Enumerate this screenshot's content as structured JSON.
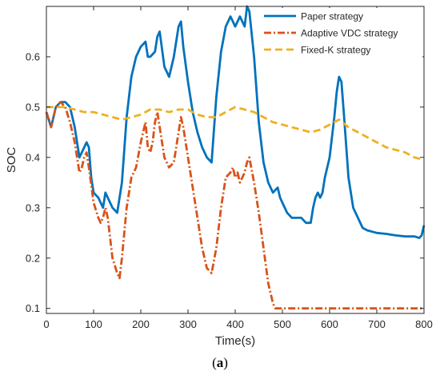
{
  "chart_data": {
    "type": "line",
    "xlabel": "Time(s)",
    "ylabel": "SOC",
    "xlim": [
      0,
      800
    ],
    "ylim": [
      0.09,
      0.7
    ],
    "xticks": [
      0,
      100,
      200,
      300,
      400,
      500,
      600,
      700,
      800
    ],
    "yticks": [
      0.1,
      0.2,
      0.3,
      0.4,
      0.5,
      0.6
    ],
    "grid": false,
    "legend_position": "top-right",
    "series": [
      {
        "name": "Paper strategy",
        "color": "#0072BD",
        "style": "solid",
        "x": [
          0,
          10,
          20,
          30,
          40,
          50,
          60,
          70,
          75,
          85,
          90,
          95,
          100,
          110,
          120,
          125,
          130,
          140,
          150,
          160,
          170,
          180,
          190,
          200,
          210,
          215,
          220,
          230,
          235,
          240,
          250,
          260,
          270,
          280,
          285,
          290,
          300,
          310,
          320,
          330,
          340,
          350,
          360,
          370,
          380,
          390,
          395,
          400,
          410,
          420,
          425,
          430,
          440,
          450,
          460,
          470,
          480,
          490,
          495,
          500,
          510,
          520,
          530,
          540,
          550,
          560,
          565,
          570,
          575,
          580,
          585,
          590,
          600,
          610,
          615,
          620,
          625,
          630,
          640,
          650,
          660,
          670,
          680,
          700,
          720,
          740,
          760,
          780,
          790,
          795,
          800
        ],
        "y": [
          0.49,
          0.46,
          0.5,
          0.51,
          0.51,
          0.5,
          0.46,
          0.4,
          0.41,
          0.43,
          0.42,
          0.36,
          0.33,
          0.32,
          0.3,
          0.33,
          0.32,
          0.3,
          0.29,
          0.35,
          0.48,
          0.56,
          0.6,
          0.62,
          0.63,
          0.6,
          0.6,
          0.61,
          0.64,
          0.65,
          0.58,
          0.56,
          0.6,
          0.66,
          0.67,
          0.62,
          0.55,
          0.49,
          0.45,
          0.42,
          0.4,
          0.39,
          0.52,
          0.61,
          0.66,
          0.68,
          0.67,
          0.66,
          0.68,
          0.66,
          0.7,
          0.69,
          0.6,
          0.47,
          0.39,
          0.35,
          0.33,
          0.34,
          0.32,
          0.31,
          0.29,
          0.28,
          0.28,
          0.28,
          0.27,
          0.27,
          0.3,
          0.32,
          0.33,
          0.32,
          0.33,
          0.36,
          0.4,
          0.48,
          0.53,
          0.56,
          0.55,
          0.49,
          0.36,
          0.3,
          0.28,
          0.26,
          0.255,
          0.25,
          0.248,
          0.245,
          0.243,
          0.243,
          0.24,
          0.245,
          0.265
        ]
      },
      {
        "name": "Adaptive VDC strategy",
        "color": "#D95319",
        "style": "dashdot",
        "x": [
          0,
          10,
          20,
          30,
          40,
          50,
          60,
          70,
          75,
          80,
          85,
          90,
          100,
          110,
          115,
          120,
          125,
          130,
          140,
          150,
          155,
          160,
          170,
          180,
          190,
          200,
          205,
          210,
          215,
          220,
          225,
          230,
          235,
          240,
          250,
          260,
          270,
          280,
          285,
          290,
          300,
          310,
          320,
          330,
          340,
          350,
          360,
          370,
          380,
          390,
          395,
          400,
          405,
          410,
          415,
          420,
          425,
          430,
          440,
          450,
          460,
          470,
          480,
          485,
          490,
          500,
          600,
          700,
          800
        ],
        "y": [
          0.49,
          0.46,
          0.5,
          0.51,
          0.5,
          0.47,
          0.43,
          0.37,
          0.38,
          0.4,
          0.41,
          0.38,
          0.31,
          0.28,
          0.27,
          0.28,
          0.3,
          0.28,
          0.2,
          0.17,
          0.16,
          0.2,
          0.3,
          0.36,
          0.38,
          0.43,
          0.45,
          0.47,
          0.42,
          0.41,
          0.43,
          0.47,
          0.49,
          0.46,
          0.4,
          0.38,
          0.39,
          0.45,
          0.48,
          0.46,
          0.4,
          0.34,
          0.28,
          0.22,
          0.18,
          0.17,
          0.22,
          0.3,
          0.36,
          0.37,
          0.38,
          0.36,
          0.37,
          0.35,
          0.36,
          0.37,
          0.39,
          0.4,
          0.35,
          0.29,
          0.22,
          0.15,
          0.11,
          0.1,
          0.1,
          0.1,
          0.1,
          0.1,
          0.1
        ]
      },
      {
        "name": "Fixed-K strategy",
        "color": "#EDB120",
        "style": "dashed",
        "x": [
          0,
          20,
          40,
          60,
          80,
          100,
          120,
          140,
          160,
          180,
          200,
          220,
          240,
          260,
          280,
          300,
          320,
          340,
          360,
          380,
          400,
          420,
          440,
          460,
          480,
          500,
          520,
          540,
          560,
          580,
          600,
          620,
          640,
          660,
          680,
          700,
          720,
          740,
          760,
          780,
          800
        ],
        "y": [
          0.5,
          0.5,
          0.5,
          0.495,
          0.49,
          0.49,
          0.485,
          0.48,
          0.475,
          0.48,
          0.485,
          0.495,
          0.495,
          0.49,
          0.495,
          0.495,
          0.485,
          0.48,
          0.48,
          0.49,
          0.5,
          0.495,
          0.49,
          0.48,
          0.47,
          0.465,
          0.46,
          0.455,
          0.45,
          0.455,
          0.465,
          0.475,
          0.46,
          0.45,
          0.44,
          0.43,
          0.42,
          0.415,
          0.41,
          0.4,
          0.395
        ]
      }
    ]
  },
  "caption": {
    "prefix": "(",
    "letter": "a",
    "suffix": ")"
  }
}
